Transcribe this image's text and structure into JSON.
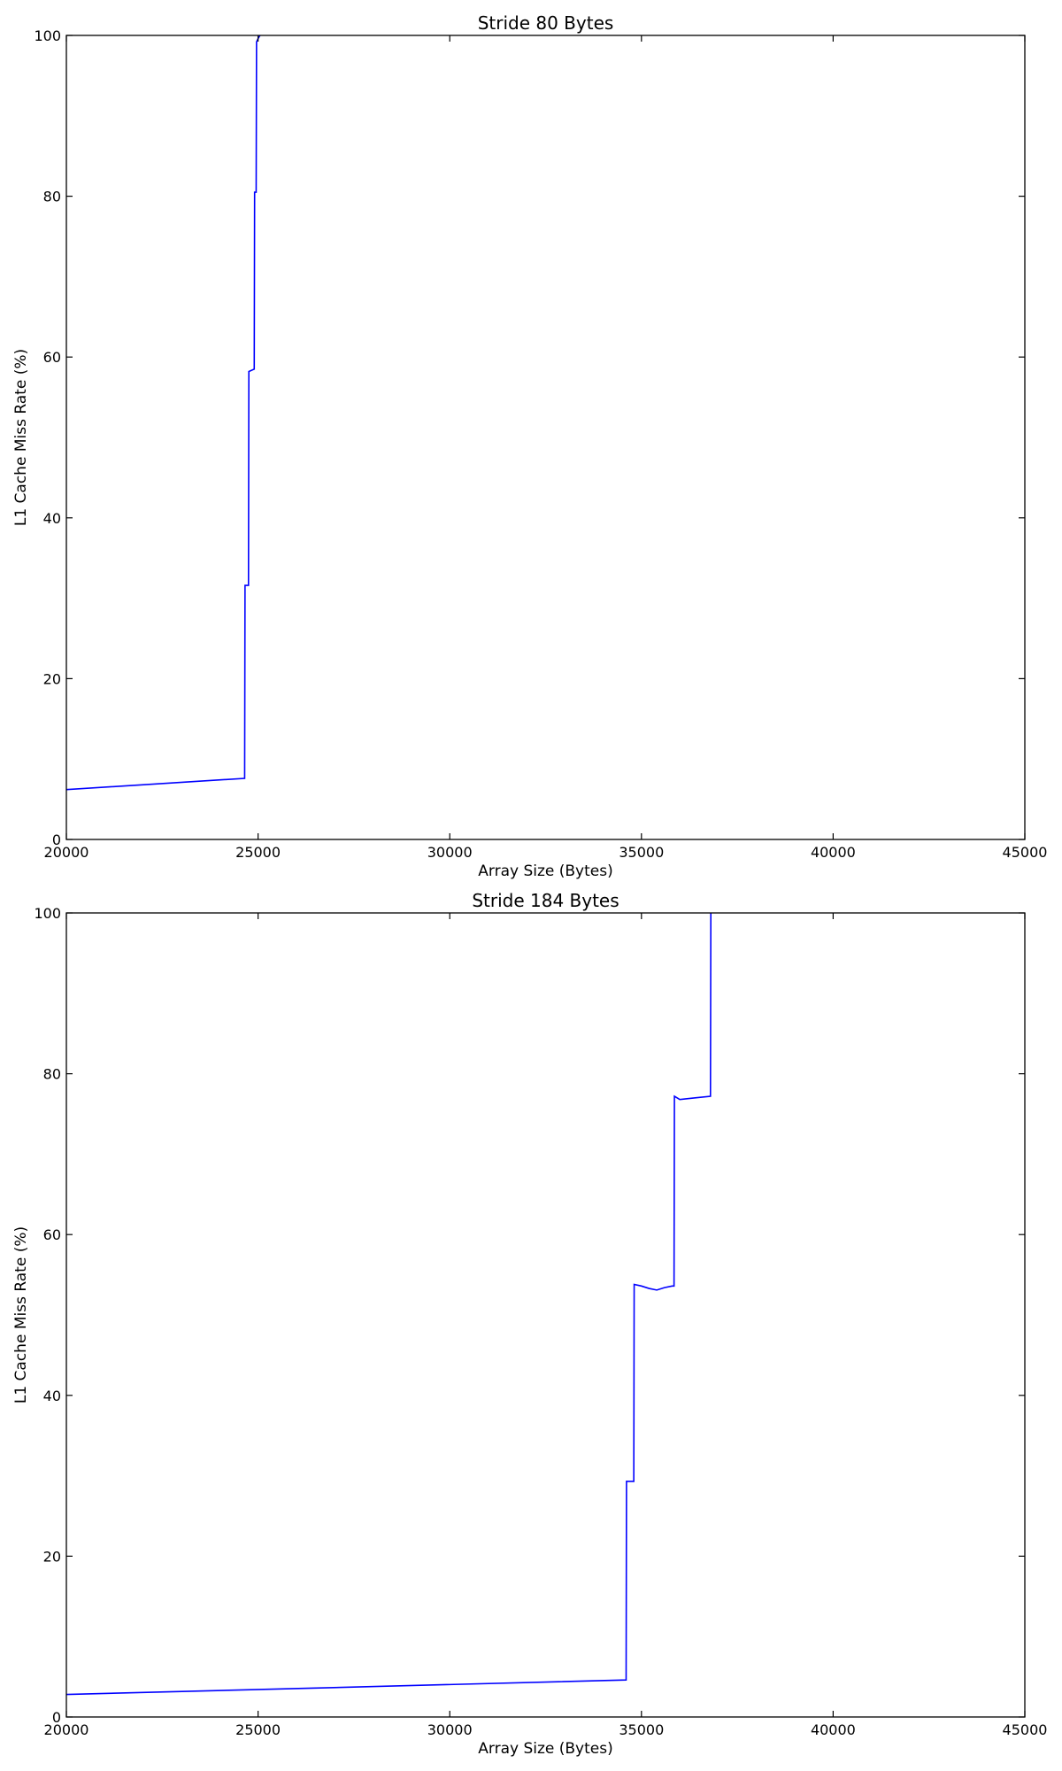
{
  "chart_data": [
    {
      "type": "line",
      "title": "Stride 80 Bytes",
      "xlabel": "Array Size (Bytes)",
      "ylabel": "L1 Cache Miss Rate (%)",
      "xlim": [
        20000,
        45000
      ],
      "ylim": [
        0,
        100
      ],
      "xticks": [
        20000,
        25000,
        30000,
        35000,
        40000,
        45000
      ],
      "yticks": [
        0,
        20,
        40,
        60,
        80,
        100
      ],
      "grid": false,
      "legend": "none",
      "series": [
        {
          "color": "#0000ff",
          "x": [
            20000,
            24650,
            24660,
            24750,
            24760,
            24900,
            24910,
            24950,
            24960,
            25000,
            25050
          ],
          "y": [
            6.2,
            7.6,
            31.6,
            31.6,
            58.2,
            58.5,
            80.5,
            80.5,
            99.2,
            99.6,
            100
          ]
        }
      ]
    },
    {
      "type": "line",
      "title": "Stride 184 Bytes",
      "xlabel": "Array Size (Bytes)",
      "ylabel": "L1 Cache Miss Rate (%)",
      "xlim": [
        20000,
        45000
      ],
      "ylim": [
        0,
        100
      ],
      "xticks": [
        20000,
        25000,
        30000,
        35000,
        40000,
        45000
      ],
      "yticks": [
        0,
        20,
        40,
        60,
        80,
        100
      ],
      "grid": false,
      "legend": "none",
      "series": [
        {
          "color": "#0000ff",
          "x": [
            20000,
            34600,
            34610,
            34800,
            34810,
            35000,
            35200,
            35400,
            35600,
            35800,
            35850,
            35860,
            36000,
            36400,
            36800,
            36810
          ],
          "y": [
            2.8,
            4.6,
            29.3,
            29.3,
            53.8,
            53.6,
            53.3,
            53.1,
            53.4,
            53.6,
            53.6,
            77.2,
            76.8,
            77.0,
            77.2,
            100
          ]
        }
      ]
    }
  ]
}
